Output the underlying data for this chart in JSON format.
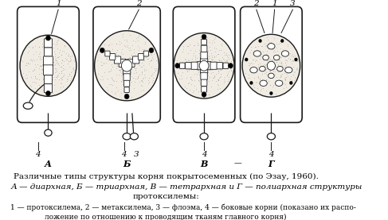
{
  "title_line1": "Различные типы структуры корня покрытосеменных (по Эзау, 1960).",
  "title_line2": "А — диархная, Б — триархная, В — тетрархная и Г — полиархная структуры",
  "title_line3": "протоксилемы:",
  "title_line4": "① — протоксилема, 2 — метаксилема, 3 — флоэма, 4 — боковые корни (показано их распо-",
  "title_line5": "ложение по отношению к проводящим тканям главного корня)",
  "labels_bottom": [
    "А",
    "Б",
    "В",
    "Г"
  ],
  "bg_color": "#ffffff",
  "fig_bg": "#ffffff"
}
